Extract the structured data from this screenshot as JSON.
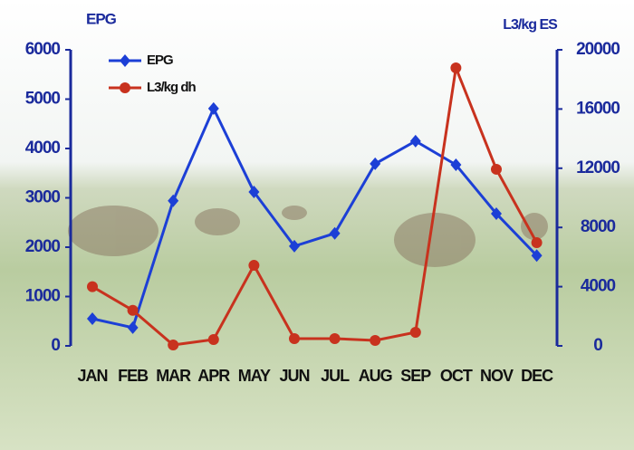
{
  "chart_data": {
    "type": "line",
    "y_label": "EPG",
    "y2_label": "L3/kg ES",
    "categories": [
      "JAN",
      "FEB",
      "MAR",
      "APR",
      "MAY",
      "JUN",
      "JUL",
      "AUG",
      "SEP",
      "OCT",
      "NOV",
      "DEC"
    ],
    "series": [
      {
        "name": "EPG",
        "color": "#1c3fd6",
        "marker": "diamond",
        "values": [
          550,
          370,
          2940,
          4810,
          3120,
          2020,
          2280,
          3690,
          4150,
          3670,
          2680,
          1830
        ]
      },
      {
        "name": "L3/kg dh",
        "color": "#c8321e",
        "marker": "circle",
        "axis": "y2",
        "values": [
          4000,
          2400,
          60,
          430,
          5440,
          490,
          490,
          370,
          920,
          18780,
          11930,
          6970
        ]
      }
    ],
    "ylim": [
      0,
      6000
    ],
    "yticks": [
      0,
      1000,
      2000,
      3000,
      4000,
      5000,
      6000
    ],
    "y2lim": [
      0,
      20000
    ],
    "y2ticks": [
      0,
      4000,
      8000,
      12000,
      16000,
      20000
    ],
    "axis_color": "#1a2a9c",
    "legend": "upper left"
  }
}
